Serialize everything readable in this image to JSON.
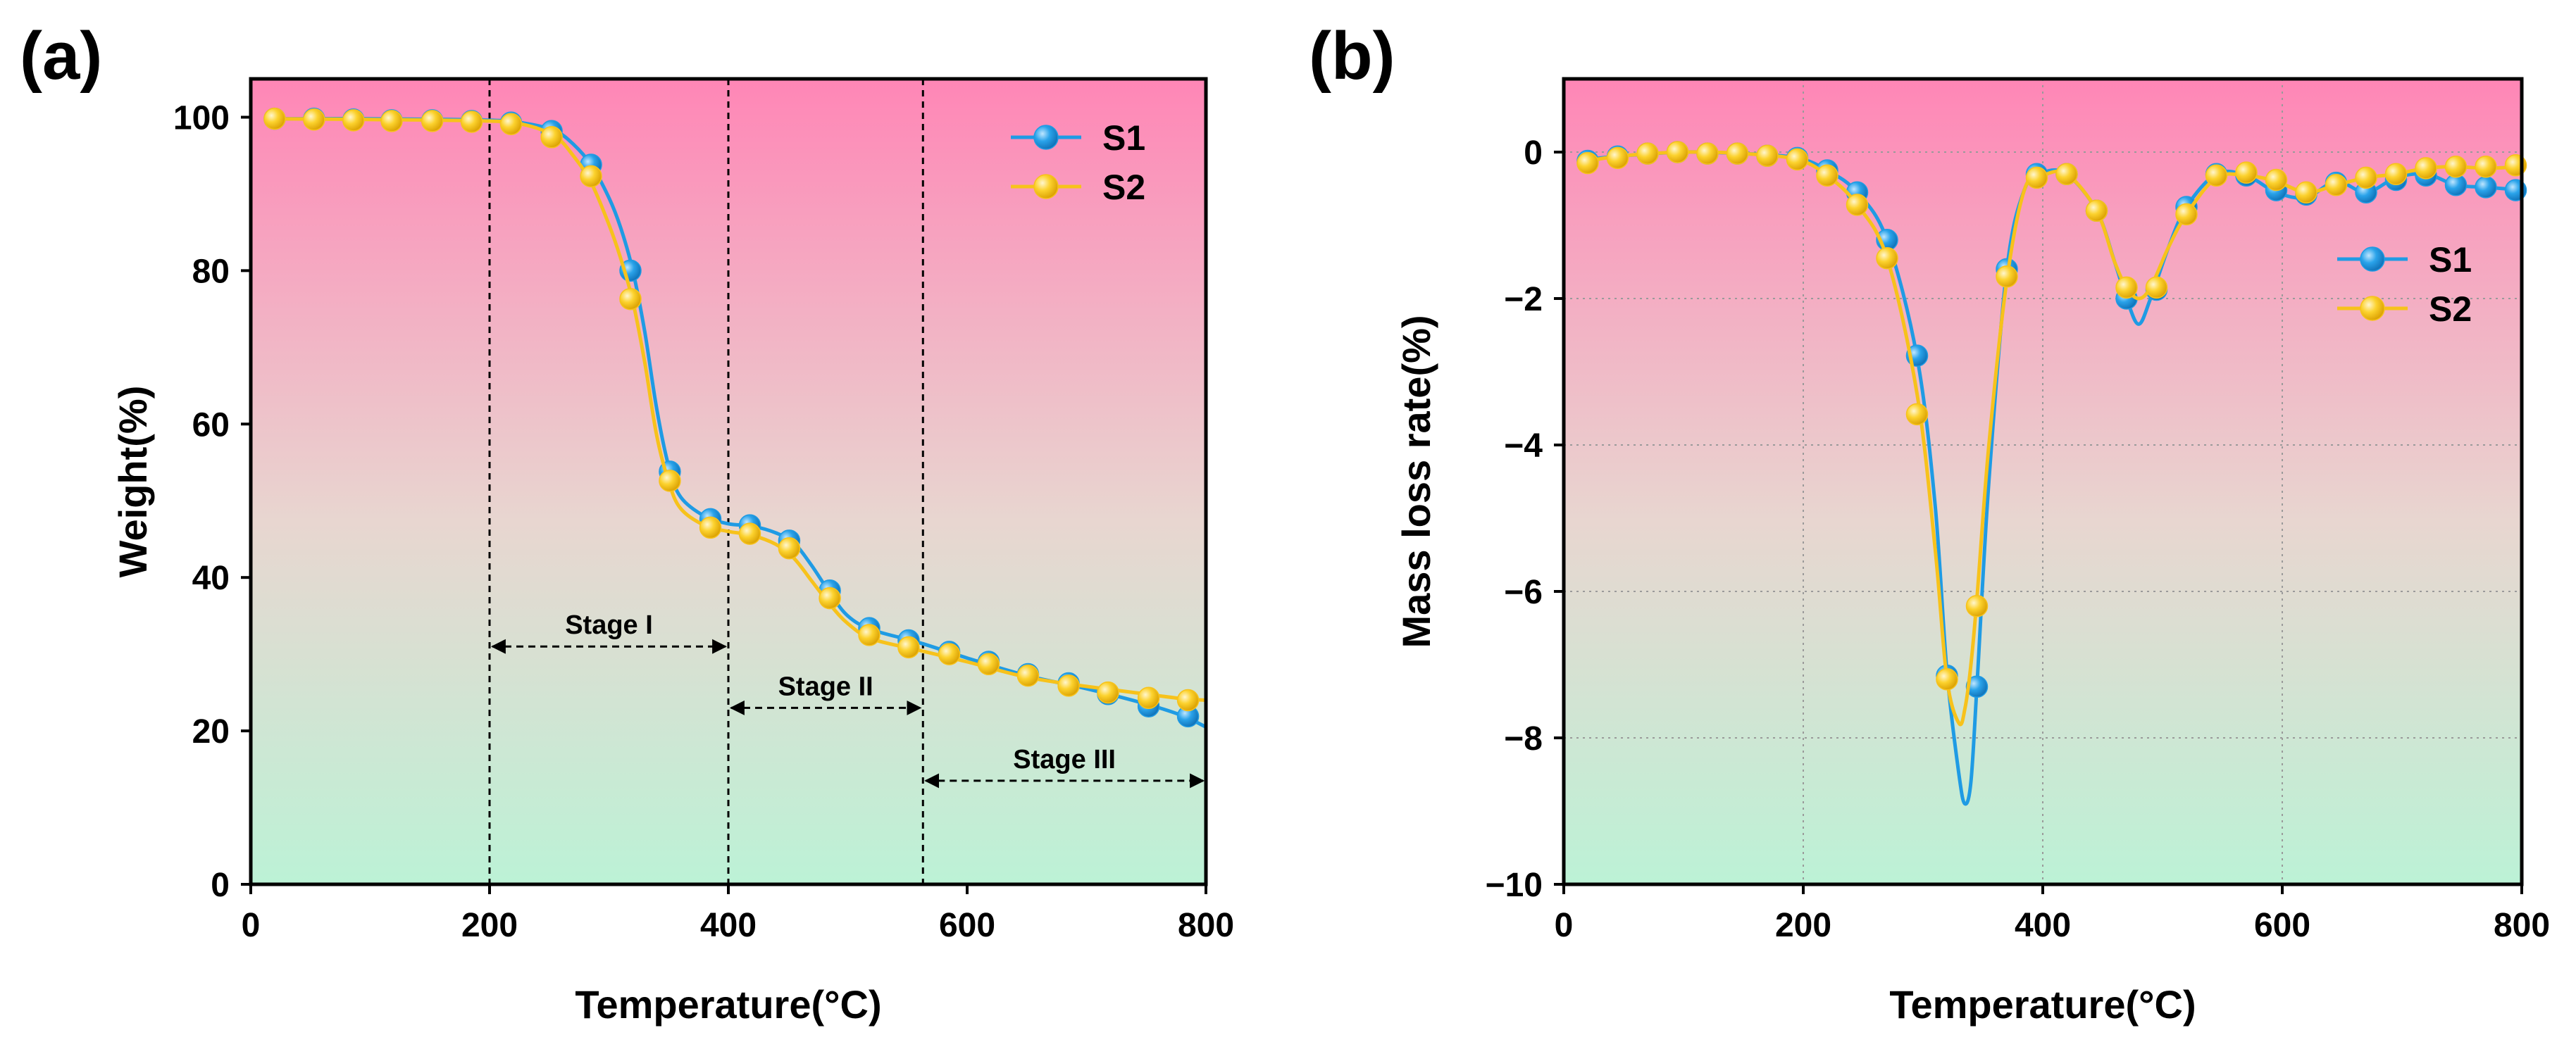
{
  "colors": {
    "s1_line": "#1f9be4",
    "s1_marker": "#2aa3ea",
    "s2_line": "#f7c21b",
    "s2_marker": "#fcd22e",
    "bg_top": "#ff86b6",
    "bg_mid": "#e8d6d0",
    "bg_bottom": "#bcf2d6"
  },
  "chart_data": [
    {
      "panel_label": "(a)",
      "type": "line",
      "title": "",
      "xlabel": "Temperature(°C)",
      "ylabel": "Weight(%)",
      "xlim": [
        0,
        800
      ],
      "ylim": [
        0,
        105
      ],
      "xticks": [
        {
          "value": 0,
          "label": "0"
        },
        {
          "value": 200,
          "label": "200"
        },
        {
          "value": 400,
          "label": "400"
        },
        {
          "value": 600,
          "label": "600"
        },
        {
          "value": 800,
          "label": "800"
        }
      ],
      "yticks": [
        {
          "value": 0,
          "label": "0"
        },
        {
          "value": 20,
          "label": "20"
        },
        {
          "value": 40,
          "label": "40"
        },
        {
          "value": 60,
          "label": "60"
        },
        {
          "value": 80,
          "label": "80"
        },
        {
          "value": 100,
          "label": "100"
        }
      ],
      "grid": false,
      "legend_position": "top-right",
      "series": [
        {
          "name": "S1",
          "color_key": "s1",
          "line": {
            "x": [
              20,
              100,
              200,
              230,
              255,
              270,
              285,
              300,
              310,
              320,
              330,
              340,
              350,
              360,
              380,
              400,
              420,
              440,
              455,
              470,
              485,
              500,
              520,
              560,
              600,
              650,
              700,
              750,
              780,
              800
            ],
            "y": [
              99.8,
              99.8,
              99.6,
              99.2,
              98.2,
              96.5,
              93.8,
              89.5,
              85.5,
              80.0,
              72.0,
              62.0,
              54.5,
              50.5,
              48.0,
              47.0,
              46.7,
              45.8,
              44.5,
              41.5,
              38.0,
              35.0,
              33.2,
              31.5,
              29.5,
              27.2,
              25.5,
              23.5,
              22.0,
              20.5
            ]
          },
          "markers": {
            "x": [
              20,
              53,
              86,
              118,
              152,
              185,
              218,
              252,
              285,
              318,
              351,
              385,
              418,
              451,
              485,
              518,
              551,
              585,
              618,
              651,
              685,
              718,
              752,
              785
            ],
            "y": [
              99.8,
              99.8,
              99.7,
              99.6,
              99.6,
              99.5,
              99.3,
              98.2,
              93.8,
              80.0,
              53.8,
              47.6,
              46.8,
              44.8,
              38.3,
              33.4,
              31.8,
              30.3,
              29.0,
              27.4,
              26.2,
              24.8,
              23.2,
              21.9
            ]
          }
        },
        {
          "name": "S2",
          "color_key": "s2",
          "line": {
            "x": [
              20,
              100,
              200,
              230,
              255,
              270,
              285,
              300,
              310,
              320,
              330,
              340,
              350,
              360,
              380,
              400,
              420,
              440,
              455,
              470,
              485,
              500,
              520,
              560,
              600,
              650,
              700,
              750,
              780,
              800
            ],
            "y": [
              99.8,
              99.7,
              99.5,
              99.0,
              97.5,
              95.0,
              91.5,
              86.0,
              81.5,
              76.0,
              68.0,
              58.5,
              52.5,
              49.0,
              46.8,
              46.0,
              45.5,
              44.3,
              42.5,
              39.5,
              36.5,
              34.0,
              32.0,
              30.5,
              29.0,
              27.0,
              25.8,
              24.8,
              24.2,
              24.0
            ]
          },
          "markers": {
            "x": [
              20,
              53,
              86,
              118,
              152,
              185,
              218,
              252,
              285,
              318,
              351,
              385,
              418,
              451,
              485,
              518,
              551,
              585,
              618,
              651,
              685,
              718,
              752,
              785
            ],
            "y": [
              99.8,
              99.7,
              99.6,
              99.5,
              99.5,
              99.4,
              99.1,
              97.4,
              92.3,
              76.3,
              52.6,
              46.5,
              45.7,
              43.8,
              37.3,
              32.5,
              30.9,
              30.0,
              28.7,
              27.2,
              25.9,
              25.0,
              24.3,
              24.0
            ]
          }
        }
      ],
      "stage_lines_x": [
        200,
        400,
        563
      ],
      "stages": [
        {
          "label": "Stage I",
          "x_start": 200,
          "x_end": 400,
          "y": 31
        },
        {
          "label": "Stage II",
          "x_start": 400,
          "x_end": 563,
          "y": 23
        },
        {
          "label": "Stage III",
          "x_start": 563,
          "x_end": 800,
          "y": 13.5
        }
      ]
    },
    {
      "panel_label": "(b)",
      "type": "line",
      "title": "",
      "xlabel": "Temperature(°C)",
      "ylabel": "Mass loss rate(%)",
      "xlim": [
        0,
        800
      ],
      "ylim": [
        -10,
        1
      ],
      "xticks": [
        {
          "value": 0,
          "label": "0"
        },
        {
          "value": 200,
          "label": "200"
        },
        {
          "value": 400,
          "label": "400"
        },
        {
          "value": 600,
          "label": "600"
        },
        {
          "value": 800,
          "label": "800"
        }
      ],
      "yticks": [
        {
          "value": 0,
          "label": "0"
        },
        {
          "value": -2,
          "label": "−2"
        },
        {
          "value": -4,
          "label": "−4"
        },
        {
          "value": -6,
          "label": "−6"
        },
        {
          "value": -8,
          "label": "−8"
        },
        {
          "value": -10,
          "label": "−10"
        }
      ],
      "grid": true,
      "legend_position": "top-right",
      "series": [
        {
          "name": "S1",
          "color_key": "s1",
          "line": {
            "x": [
              20,
              50,
              100,
              150,
              195,
              220,
              245,
              270,
              295,
              310,
              320,
              330,
              335,
              340,
              345,
              355,
              370,
              385,
              400,
              420,
              445,
              460,
              470,
              480,
              490,
              505,
              520,
              545,
              570,
              595,
              620,
              645,
              670,
              695,
              720,
              745,
              770,
              800
            ],
            "y": [
              -0.1,
              -0.05,
              0.0,
              -0.02,
              -0.08,
              -0.25,
              -0.55,
              -1.2,
              -2.8,
              -4.8,
              -7.1,
              -8.5,
              -8.9,
              -8.6,
              -7.3,
              -4.5,
              -1.6,
              -0.5,
              -0.28,
              -0.3,
              -0.8,
              -1.5,
              -2.0,
              -2.35,
              -2.0,
              -1.3,
              -0.75,
              -0.3,
              -0.32,
              -0.55,
              -0.62,
              -0.4,
              -0.55,
              -0.35,
              -0.3,
              -0.45,
              -0.48,
              -0.52
            ]
          },
          "markers": {
            "x": [
              20,
              45,
              70,
              95,
              120,
              145,
              170,
              195,
              220,
              245,
              270,
              295,
              320,
              345,
              370,
              395,
              420,
              445,
              470,
              495,
              520,
              545,
              570,
              595,
              620,
              645,
              670,
              695,
              720,
              745,
              770,
              795
            ],
            "y": [
              -0.12,
              -0.06,
              -0.02,
              0.0,
              -0.02,
              -0.02,
              -0.05,
              -0.08,
              -0.25,
              -0.55,
              -1.2,
              -2.78,
              -7.15,
              -7.3,
              -1.6,
              -0.3,
              -0.3,
              -0.8,
              -2.0,
              -1.88,
              -0.75,
              -0.3,
              -0.32,
              -0.52,
              -0.58,
              -0.42,
              -0.55,
              -0.38,
              -0.32,
              -0.45,
              -0.48,
              -0.52
            ]
          }
        },
        {
          "name": "S2",
          "color_key": "s2",
          "line": {
            "x": [
              20,
              50,
              100,
              150,
              195,
              220,
              245,
              270,
              295,
              310,
              320,
              330,
              335,
              340,
              345,
              355,
              370,
              385,
              400,
              420,
              445,
              460,
              470,
              480,
              490,
              505,
              520,
              545,
              570,
              595,
              620,
              645,
              670,
              695,
              720,
              745,
              770,
              800
            ],
            "y": [
              -0.12,
              -0.05,
              0.0,
              -0.02,
              -0.1,
              -0.32,
              -0.72,
              -1.45,
              -3.3,
              -5.4,
              -7.2,
              -7.8,
              -7.6,
              -7.0,
              -6.1,
              -4.0,
              -1.75,
              -0.5,
              -0.32,
              -0.3,
              -0.8,
              -1.5,
              -1.85,
              -2.0,
              -1.85,
              -1.3,
              -0.85,
              -0.35,
              -0.32,
              -0.4,
              -0.55,
              -0.45,
              -0.35,
              -0.3,
              -0.22,
              -0.2,
              -0.22,
              -0.2
            ]
          },
          "markers": {
            "x": [
              20,
              45,
              70,
              95,
              120,
              145,
              170,
              195,
              220,
              245,
              270,
              295,
              320,
              345,
              370,
              395,
              420,
              445,
              470,
              495,
              520,
              545,
              570,
              595,
              620,
              645,
              670,
              695,
              720,
              745,
              770,
              795
            ],
            "y": [
              -0.15,
              -0.08,
              -0.02,
              0.0,
              -0.02,
              -0.02,
              -0.05,
              -0.1,
              -0.32,
              -0.72,
              -1.45,
              -3.58,
              -7.2,
              -6.2,
              -1.7,
              -0.35,
              -0.3,
              -0.8,
              -1.85,
              -1.85,
              -0.85,
              -0.32,
              -0.28,
              -0.38,
              -0.55,
              -0.45,
              -0.35,
              -0.3,
              -0.22,
              -0.2,
              -0.2,
              -0.18
            ]
          }
        }
      ]
    }
  ]
}
